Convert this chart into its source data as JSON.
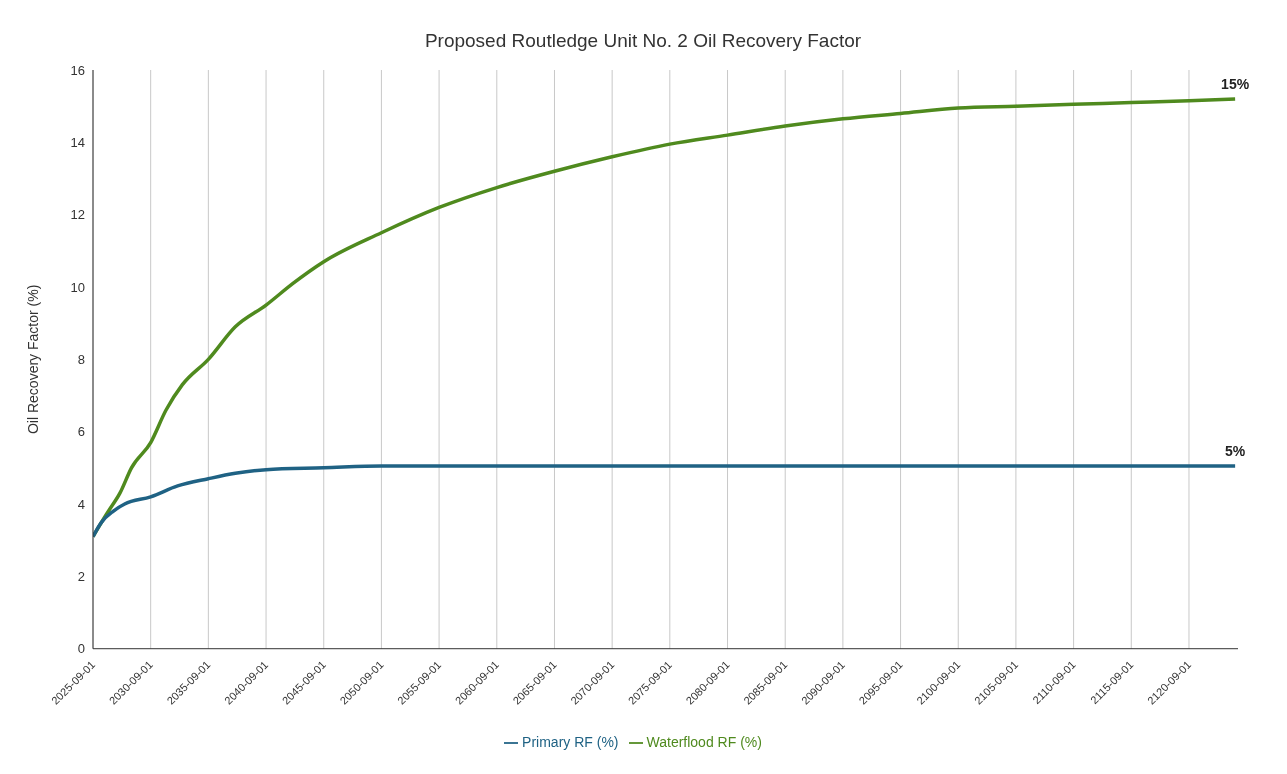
{
  "chart_data": {
    "type": "line",
    "title": "Proposed Routledge Unit No. 2 Oil Recovery Factor",
    "ylabel": "Oil Recovery Factor (%)",
    "xlim": [
      "2025-09-01",
      "2124-12-01"
    ],
    "xticks": [
      "2025-09-01",
      "2030-09-01",
      "2035-09-01",
      "2040-09-01",
      "2045-09-01",
      "2050-09-01",
      "2055-09-01",
      "2060-09-01",
      "2065-09-01",
      "2070-09-01",
      "2075-09-01",
      "2080-09-01",
      "2085-09-01",
      "2090-09-01",
      "2095-09-01",
      "2100-09-01",
      "2105-09-01",
      "2110-09-01",
      "2115-09-01",
      "2120-09-01"
    ],
    "ylim": [
      0,
      16
    ],
    "yticks": [
      0,
      2,
      4,
      6,
      8,
      10,
      12,
      14,
      16
    ],
    "grid": true,
    "legend": "bottom",
    "marker": "none",
    "line_style": "solid",
    "series": [
      {
        "name": "Waterflood RF (%)",
        "color": "#4f8a1e",
        "x": [
          "2025-09-01",
          "2026-06-01",
          "2027-01-01",
          "2028-01-01",
          "2029-01-01",
          "2030-09-01",
          "2032-01-01",
          "2033-06-01",
          "2035-09-01",
          "2038-01-01",
          "2040-09-01",
          "2043-01-01",
          "2045-09-01",
          "2050-09-01",
          "2055-09-01",
          "2060-09-01",
          "2065-09-01",
          "2070-09-01",
          "2075-09-01",
          "2080-09-01",
          "2085-09-01",
          "2090-09-01",
          "2095-09-01",
          "2100-09-01",
          "2105-09-01",
          "2110-09-01",
          "2115-09-01",
          "2120-09-01",
          "2124-09-01"
        ],
        "values": [
          3.1,
          3.5,
          3.8,
          4.3,
          5.0,
          5.7,
          6.6,
          7.3,
          8.0,
          8.9,
          9.5,
          10.1,
          10.7,
          11.5,
          12.2,
          12.75,
          13.2,
          13.6,
          13.95,
          14.2,
          14.45,
          14.65,
          14.8,
          14.95,
          15.0,
          15.05,
          15.1,
          15.15,
          15.2
        ]
      },
      {
        "name": "Primary RF (%)",
        "color": "#1f6284",
        "x": [
          "2025-09-01",
          "2026-06-01",
          "2027-06-01",
          "2028-06-01",
          "2030-09-01",
          "2033-01-01",
          "2035-09-01",
          "2038-01-01",
          "2040-09-01",
          "2045-09-01",
          "2050-09-01",
          "2060-09-01",
          "2080-09-01",
          "2100-09-01",
          "2124-09-01"
        ],
        "values": [
          3.1,
          3.5,
          3.8,
          4.0,
          4.2,
          4.5,
          4.7,
          4.85,
          4.95,
          5.0,
          5.05,
          5.05,
          5.05,
          5.05,
          5.05
        ]
      }
    ],
    "annotations": [
      {
        "text": "15%",
        "x": "2124-09-01",
        "y": 15.2
      },
      {
        "text": "5%",
        "x": "2124-09-01",
        "y": 5.05
      }
    ]
  }
}
